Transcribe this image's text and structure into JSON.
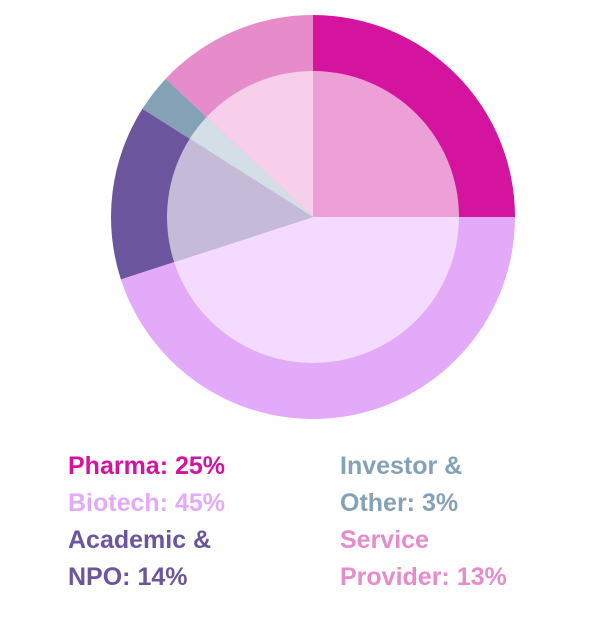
{
  "chart_data": {
    "type": "pie",
    "variant": "donut-with-lighter-inner-pie",
    "start_angle": "12 o'clock",
    "direction": "clockwise",
    "slices": [
      {
        "label": "Pharma",
        "value": 25,
        "display": "Pharma: 25%",
        "color": "#d4139e",
        "inner_color": "#ed9fd8"
      },
      {
        "label": "Biotech",
        "value": 45,
        "display": "Biotech: 45%",
        "color": "#e2aaf9",
        "inner_color": "#f3dafe"
      },
      {
        "label": "Academic & NPO",
        "value": 14,
        "display": "Academic &\nNPO: 14%",
        "color": "#6b559c",
        "inner_color": "#c5bbd9"
      },
      {
        "label": "Investor & Other",
        "value": 3,
        "display": "Investor &\nOther: 3%",
        "color": "#84a1b6",
        "inner_color": "#d4dee6"
      },
      {
        "label": "Service Provider",
        "value": 13,
        "display": "Service\nProvider: 13%",
        "color": "#e68cca",
        "inner_color": "#f7cfea"
      }
    ],
    "legend_position": "bottom"
  }
}
